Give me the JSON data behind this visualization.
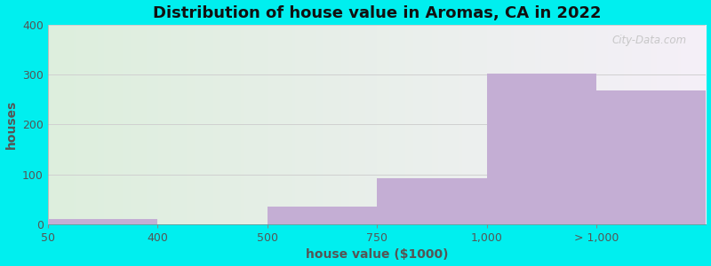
{
  "title": "Distribution of house value in Aromas, CA in 2022",
  "xlabel": "house value ($1000)",
  "ylabel": "houses",
  "tick_labels": [
    "50",
    "400",
    "500",
    "750",
    "1,000",
    "> 1,000"
  ],
  "values": [
    10,
    0,
    35,
    93,
    302,
    268
  ],
  "bar_color": "#c4aed4",
  "bg_outer": "#00efef",
  "bg_inner_left": "#ddeedd",
  "bg_inner_right": "#f5f0f8",
  "ylim": [
    0,
    400
  ],
  "yticks": [
    0,
    100,
    200,
    300,
    400
  ],
  "grid_color": "#d0d0d0",
  "title_fontsize": 13,
  "label_fontsize": 10,
  "tick_fontsize": 9,
  "tick_color": "#555555",
  "watermark_text": "City-Data.com",
  "bin_edges": [
    0,
    1,
    2,
    3,
    4,
    5,
    6
  ],
  "tick_positions": [
    0,
    1,
    2,
    3,
    4,
    5
  ]
}
